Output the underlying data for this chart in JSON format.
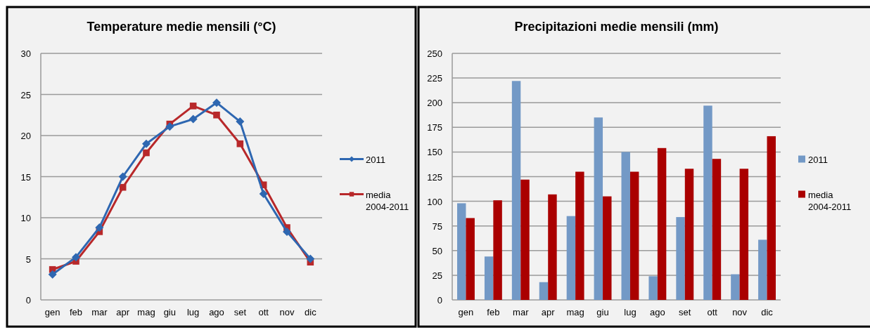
{
  "chart_data": [
    {
      "type": "line",
      "title": "Temperature medie mensili (°C)",
      "categories": [
        "gen",
        "feb",
        "mar",
        "apr",
        "mag",
        "giu",
        "lug",
        "ago",
        "set",
        "ott",
        "nov",
        "dic"
      ],
      "series": [
        {
          "name": "2011",
          "color": "#2e67b1",
          "marker": "diamond",
          "values": [
            3.1,
            5.2,
            8.8,
            15,
            19,
            21.1,
            22,
            24,
            21.7,
            12.9,
            8.3,
            5
          ]
        },
        {
          "name": "media\n2004-2011",
          "color": "#b8282a",
          "marker": "square",
          "values": [
            3.7,
            4.7,
            8.3,
            13.7,
            17.9,
            21.4,
            23.6,
            22.5,
            19,
            14,
            8.8,
            4.6
          ]
        }
      ],
      "ylim": [
        0,
        30
      ],
      "yticks": [
        0,
        5,
        10,
        15,
        20,
        25,
        30
      ],
      "grid": "y",
      "legend": "right"
    },
    {
      "type": "bar",
      "title": "Precipitazioni medie mensili (mm)",
      "categories": [
        "gen",
        "feb",
        "mar",
        "apr",
        "mag",
        "giu",
        "lug",
        "ago",
        "set",
        "ott",
        "nov",
        "dic"
      ],
      "series": [
        {
          "name": "2011",
          "color": "#7399c6",
          "values": [
            98,
            44,
            222,
            18,
            85,
            185,
            150,
            24,
            84,
            197,
            26,
            61
          ]
        },
        {
          "name": "media\n2004-2011",
          "color": "#aa0000",
          "values": [
            83,
            101,
            122,
            107,
            130,
            105,
            130,
            154,
            133,
            143,
            133,
            166
          ]
        }
      ],
      "ylim": [
        0,
        250
      ],
      "yticks": [
        0,
        25,
        50,
        75,
        100,
        125,
        150,
        175,
        200,
        225,
        250
      ],
      "grid": "y",
      "legend": "right"
    }
  ]
}
